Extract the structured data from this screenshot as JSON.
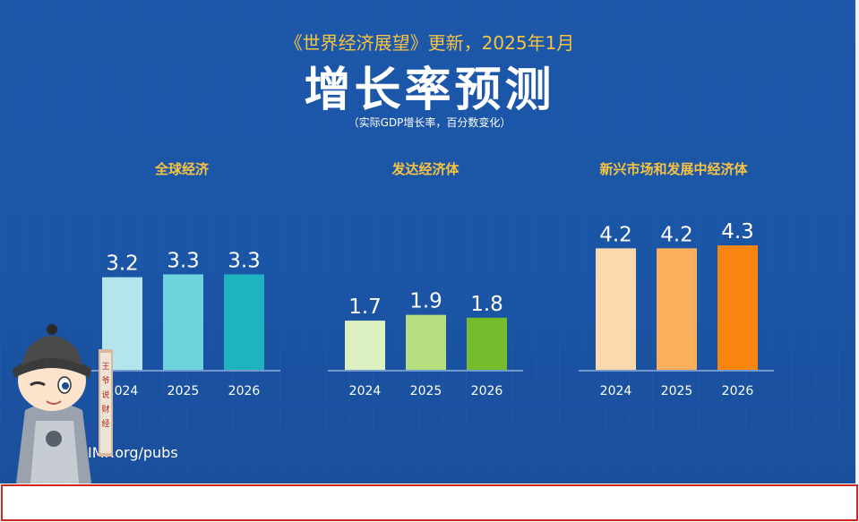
{
  "header": {
    "subtitle": "《世界经济展望》更新，2025年1月",
    "title": "增长率预测",
    "note": "（实际GDP增长率，百分数变化）"
  },
  "footer": {
    "source": "IMF.org/pubs"
  },
  "watermark": {
    "text": "王爷说财经"
  },
  "chart_data": [
    {
      "type": "bar",
      "title": "全球经济",
      "categories": [
        "2024",
        "2025",
        "2026"
      ],
      "values": [
        3.2,
        3.3,
        3.3
      ],
      "colors": [
        "#b3e6ec",
        "#6dd3dc",
        "#1fb3c0"
      ]
    },
    {
      "type": "bar",
      "title": "发达经济体",
      "categories": [
        "2024",
        "2025",
        "2026"
      ],
      "values": [
        1.7,
        1.9,
        1.8
      ],
      "colors": [
        "#dcf0c2",
        "#b5df7e",
        "#76bd2e"
      ]
    },
    {
      "type": "bar",
      "title": "新兴市场和发展中经济体",
      "categories": [
        "2024",
        "2025",
        "2026"
      ],
      "values": [
        4.2,
        4.2,
        4.3
      ],
      "colors": [
        "#fcd9ac",
        "#fcaf5c",
        "#f98511"
      ]
    }
  ]
}
